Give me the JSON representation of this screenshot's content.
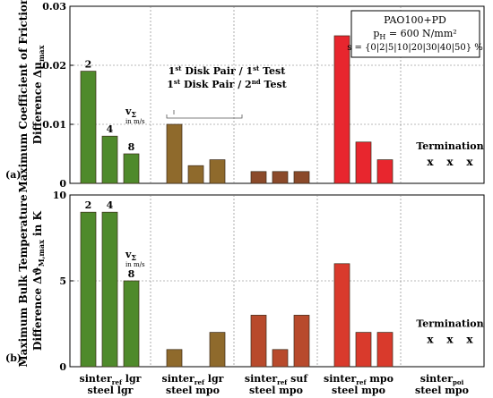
{
  "chart_data": [
    {
      "panel": "(a)",
      "type": "bar",
      "ylabel_line1": "Maximum Coefficient of Friction",
      "ylabel_line2": "Difference Δμ",
      "ylabel_sub": "max",
      "ylim": [
        0,
        0.03
      ],
      "yticks": [
        "0",
        "0.01",
        "0.02",
        "0.03"
      ],
      "ytick_values": [
        0,
        0.01,
        0.02,
        0.03
      ],
      "groups": [
        {
          "key": "g1",
          "values": [
            0.019,
            0.008,
            0.005
          ],
          "color": "#4f8a2b",
          "labels": [
            "2",
            "4",
            "8"
          ]
        },
        {
          "key": "g2",
          "values": [
            0.01,
            0.003,
            0.004
          ],
          "color": "#8f6a2c",
          "labels": []
        },
        {
          "key": "g3",
          "values": [
            0.002,
            0.002,
            0.002
          ],
          "color": "#8b4a2a",
          "labels": []
        },
        {
          "key": "g4",
          "values": [
            0.025,
            0.007,
            0.004
          ],
          "color": "#e8262e",
          "labels": []
        }
      ],
      "termination_label": "Termination",
      "termination_marks": [
        "x",
        "x",
        "x"
      ],
      "velocity_label": "v",
      "velocity_sub": "Σ",
      "velocity_unit": "in m/s",
      "legend_box": {
        "line1": "PAO100+PD",
        "line2_pre": "p",
        "line2_sub": "H",
        "line2_post": " = 600 N/mm²",
        "line3": "s = {0|2|5|10|20|30|40|50} %"
      },
      "annotation_line1_pre": "1",
      "annotation_line1_sup1": "st",
      "annotation_line1_mid": " Disk Pair / 1",
      "annotation_line1_sup2": "st",
      "annotation_line1_post": " Test",
      "annotation_line2_pre": "1",
      "annotation_line2_sup1": "st",
      "annotation_line2_mid": " Disk Pair / 2",
      "annotation_line2_sup2": "nd",
      "annotation_line2_post": " Test"
    },
    {
      "panel": "(b)",
      "type": "bar",
      "ylabel_line1": "Maximum Bulk Temperature",
      "ylabel_line2": "Difference Δϑ",
      "ylabel_sub": "M,max",
      "ylabel_unit": " in K",
      "ylim": [
        0,
        10
      ],
      "yticks": [
        "0",
        "5",
        "10"
      ],
      "ytick_values": [
        0,
        5,
        10
      ],
      "groups": [
        {
          "key": "g1",
          "values": [
            9,
            9,
            5
          ],
          "color": "#4f8a2b",
          "labels": [
            "2",
            "4",
            "8"
          ]
        },
        {
          "key": "g2",
          "values": [
            1,
            0,
            2
          ],
          "color": "#8f6a2c",
          "labels": []
        },
        {
          "key": "g3",
          "values": [
            3,
            1,
            3
          ],
          "color": "#b84a2c",
          "labels": []
        },
        {
          "key": "g4",
          "values": [
            6,
            2,
            2
          ],
          "color": "#d93a2c",
          "labels": []
        }
      ],
      "termination_label": "Termination",
      "termination_marks": [
        "x",
        "x",
        "x"
      ],
      "velocity_label": "v",
      "velocity_sub": "Σ",
      "velocity_unit": "in m/s"
    }
  ],
  "categories": [
    {
      "top": "sinter",
      "top_sub": "ref",
      "top_post": " lgr",
      "bottom": "steel lgr"
    },
    {
      "top": "sinter",
      "top_sub": "ref",
      "top_post": " lgr",
      "bottom": "steel mpo"
    },
    {
      "top": "sinter",
      "top_sub": "ref",
      "top_post": " suf",
      "bottom": "steel mpo"
    },
    {
      "top": "sinter",
      "top_sub": "ref",
      "top_post": " mpo",
      "bottom": "steel mpo"
    },
    {
      "top": "sinter",
      "top_sub": "poi",
      "top_post": "",
      "bottom": "steel mpo"
    }
  ]
}
